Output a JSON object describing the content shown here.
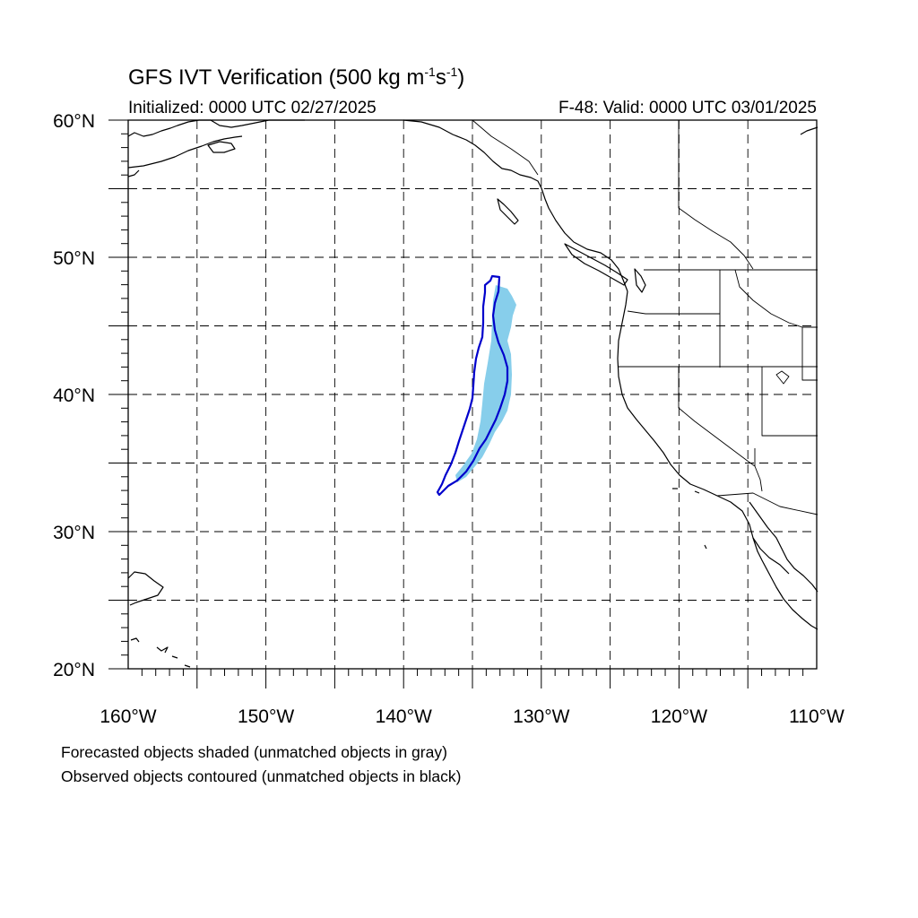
{
  "title": {
    "main": "GFS IVT Verification (500 kg m",
    "exp1": "-1",
    "mid": "s",
    "exp2": "-1",
    "end": ")"
  },
  "initialized": "Initialized: 0000 UTC 02/27/2025",
  "valid": "F-48: Valid: 0000 UTC 03/01/2025",
  "map": {
    "lon_range": [
      -160,
      -110
    ],
    "lat_range": [
      20,
      60
    ],
    "lon_labels": [
      {
        "lon": -160,
        "text": "160°W"
      },
      {
        "lon": -150,
        "text": "150°W"
      },
      {
        "lon": -140,
        "text": "140°W"
      },
      {
        "lon": -130,
        "text": "130°W"
      },
      {
        "lon": -120,
        "text": "120°W"
      },
      {
        "lon": -110,
        "text": "110°W"
      }
    ],
    "lat_labels": [
      {
        "lat": 60,
        "text": "60°N"
      },
      {
        "lat": 50,
        "text": "50°N"
      },
      {
        "lat": 40,
        "text": "40°N"
      },
      {
        "lat": 30,
        "text": "30°N"
      },
      {
        "lat": 20,
        "text": "20°N"
      }
    ],
    "grid_lons": [
      -155,
      -150,
      -145,
      -140,
      -135,
      -130,
      -125,
      -120,
      -115
    ],
    "grid_lats": [
      25,
      30,
      35,
      40,
      45,
      50,
      55
    ],
    "grid_style": "dashed",
    "colors": {
      "forecast_fill": "#87ceeb",
      "observed_contour": "#0000cc",
      "coastline": "#000000",
      "grid": "#000000"
    }
  },
  "notes": [
    "Forecasted objects shaded (unmatched objects in gray)",
    "Observed objects contoured (unmatched objects in black)"
  ]
}
